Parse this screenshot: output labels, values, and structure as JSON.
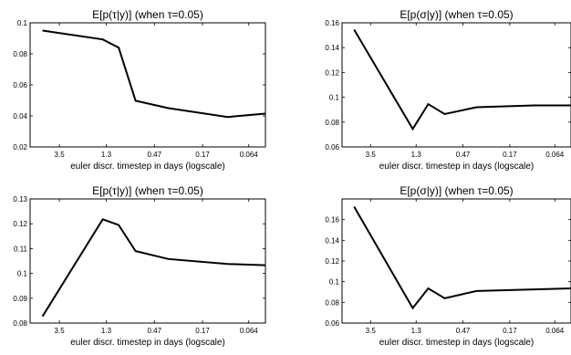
{
  "chart_data": [
    {
      "type": "line",
      "title": "E[p(τ|y)] (when τ=0.05)",
      "xlabel": "euler discr. timestep in days (logscale)",
      "ylabel": "",
      "xscale": "log",
      "x_reversed": true,
      "xlim": [
        6.5,
        0.045
      ],
      "xticks": [
        3.5,
        1.3,
        0.47,
        0.17,
        0.064
      ],
      "xtick_labels": [
        "3.5",
        "1.3",
        "0.47",
        "0.17",
        "0.064"
      ],
      "ylim": [
        0.02,
        0.1
      ],
      "yticks": [
        0.02,
        0.04,
        0.06,
        0.08,
        0.1
      ],
      "ytick_labels": [
        "0.02",
        "0.04",
        "0.06",
        "0.08",
        "0.1"
      ],
      "series": [
        {
          "x": [
            5.0,
            1.4,
            1.0,
            0.7,
            0.35,
            0.1,
            0.045
          ],
          "y": [
            0.095,
            0.0893,
            0.084,
            0.0498,
            0.045,
            0.0393,
            0.0415
          ]
        }
      ]
    },
    {
      "type": "line",
      "title": "E[p(σ|y)] (when τ=0.05)",
      "xlabel": "euler discr. timestep in days (logscale)",
      "ylabel": "",
      "xscale": "log",
      "x_reversed": true,
      "xlim": [
        6.5,
        0.045
      ],
      "xticks": [
        3.5,
        1.3,
        0.47,
        0.17,
        0.064
      ],
      "xtick_labels": [
        "3.5",
        "1.3",
        "0.47",
        "0.17",
        "0.064"
      ],
      "ylim": [
        0.06,
        0.16
      ],
      "yticks": [
        0.06,
        0.08,
        0.1,
        0.12,
        0.14,
        0.16
      ],
      "ytick_labels": [
        "0.06",
        "0.08",
        "0.1",
        "0.12",
        "0.14",
        "0.16"
      ],
      "series": [
        {
          "x": [
            5.0,
            1.4,
            1.0,
            0.7,
            0.35,
            0.1,
            0.045
          ],
          "y": [
            0.1545,
            0.0745,
            0.0945,
            0.0865,
            0.092,
            0.0935,
            0.0935
          ]
        }
      ]
    },
    {
      "type": "line",
      "title": "E[p(τ|y)] (when τ=0.05)",
      "xlabel": "euler discr. timestep in days (logscale)",
      "ylabel": "",
      "xscale": "log",
      "x_reversed": true,
      "xlim": [
        6.5,
        0.045
      ],
      "xticks": [
        3.5,
        1.3,
        0.47,
        0.17,
        0.064
      ],
      "xtick_labels": [
        "3.5",
        "1.3",
        "0.47",
        "0.17",
        "0.064"
      ],
      "ylim": [
        0.08,
        0.13
      ],
      "yticks": [
        0.08,
        0.09,
        0.1,
        0.11,
        0.12,
        0.13
      ],
      "ytick_labels": [
        "0.08",
        "0.09",
        "0.1",
        "0.11",
        "0.12",
        "0.13"
      ],
      "series": [
        {
          "x": [
            5.0,
            1.4,
            1.0,
            0.7,
            0.35,
            0.1,
            0.045
          ],
          "y": [
            0.0827,
            0.1218,
            0.1195,
            0.109,
            0.1058,
            0.1038,
            0.1033
          ]
        }
      ]
    },
    {
      "type": "line",
      "title": "E[p(σ|y)] (when τ=0.05)",
      "xlabel": "euler discr. timestep in days (logscale)",
      "ylabel": "",
      "xscale": "log",
      "x_reversed": true,
      "xlim": [
        6.5,
        0.045
      ],
      "xticks": [
        3.5,
        1.3,
        0.47,
        0.17,
        0.064
      ],
      "xtick_labels": [
        "3.5",
        "1.3",
        "0.47",
        "0.17",
        "0.064"
      ],
      "ylim": [
        0.06,
        0.18
      ],
      "yticks": [
        0.06,
        0.08,
        0.1,
        0.12,
        0.14,
        0.16
      ],
      "ytick_labels": [
        "0.06",
        "0.08",
        "0.1",
        "0.12",
        "0.14",
        "0.16"
      ],
      "series": [
        {
          "x": [
            5.0,
            1.4,
            1.0,
            0.7,
            0.35,
            0.1,
            0.045
          ],
          "y": [
            0.1725,
            0.0745,
            0.0935,
            0.084,
            0.091,
            0.0925,
            0.0935
          ]
        }
      ]
    }
  ]
}
